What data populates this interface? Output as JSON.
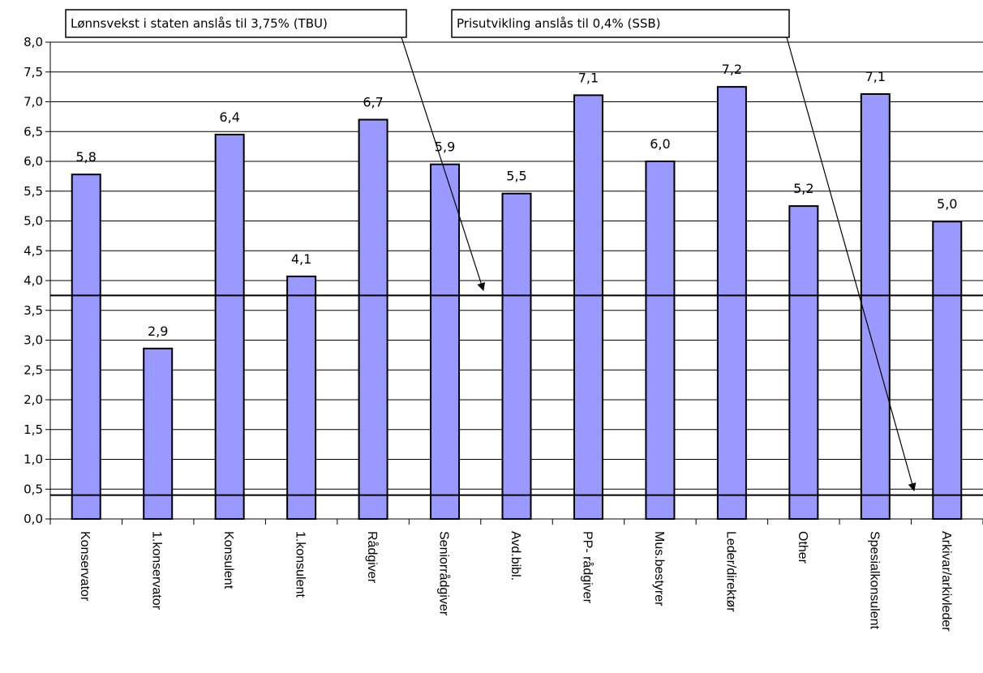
{
  "chart_data": {
    "type": "bar",
    "categories": [
      "Konservator",
      "1.konservator",
      "Konsulent",
      "1.konsulent",
      "Rådgiver",
      "Seniorrådgiver",
      "Avd.bibl.",
      "PP- rådgiver",
      "Mus.bestyrer",
      "Leder/direktør",
      "Other",
      "Spesialkonsulent",
      "Arkivar/arkivleder"
    ],
    "values": [
      5.78,
      2.86,
      6.45,
      4.07,
      6.7,
      5.95,
      5.46,
      7.11,
      6.0,
      7.25,
      5.25,
      7.13,
      4.99
    ],
    "data_labels": [
      "5,8",
      "2,9",
      "6,4",
      "4,1",
      "6,7",
      "5,9",
      "5,5",
      "7,1",
      "6,0",
      "7,2",
      "5,2",
      "7,1",
      "5,0"
    ],
    "ylim": [
      0,
      8
    ],
    "yticks": [
      "0,0",
      "0,5",
      "1,0",
      "1,5",
      "2,0",
      "2,5",
      "3,0",
      "3,5",
      "4,0",
      "4,5",
      "5,0",
      "5,5",
      "6,0",
      "6,5",
      "7,0",
      "7,5",
      "8,0"
    ],
    "grid": true,
    "bar_color": "#9999ff",
    "reference_lines": [
      {
        "value": 3.75,
        "label": "Lønnsvekst i staten anslås til 3,75% (TBU)"
      },
      {
        "value": 0.4,
        "label": "Prisutvikling anslås til 0,4% (SSB)"
      }
    ]
  }
}
